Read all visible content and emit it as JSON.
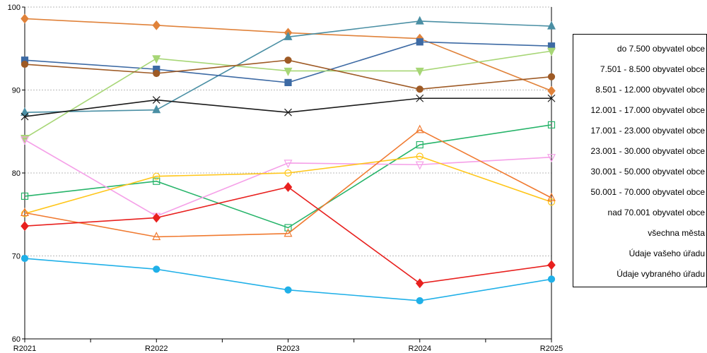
{
  "chart_data": {
    "type": "line",
    "title": "",
    "xlabel": "",
    "ylabel": "",
    "ylim": [
      60,
      100
    ],
    "yticks": [
      60,
      70,
      80,
      90,
      100
    ],
    "grid": "horizontal dotted",
    "legend_position": "right",
    "categories": [
      "R2021",
      "R2022",
      "R2023",
      "R2024",
      "R2025"
    ],
    "series": [
      {
        "name": "do 7.500 obyvatel obce",
        "color": "#e0823a",
        "marker": "diamond-filled",
        "values": [
          98.6,
          97.8,
          96.9,
          96.2,
          89.9
        ]
      },
      {
        "name": "7.501 - 8.500 obyvatel obce",
        "color": "#4a8fa4",
        "marker": "triangle-up-filled",
        "values": [
          87.3,
          87.6,
          96.4,
          98.3,
          97.7
        ]
      },
      {
        "name": "8.501 - 12.000 obyvatel obce",
        "color": "#3d6aa4",
        "marker": "square-filled",
        "values": [
          93.6,
          92.5,
          90.9,
          95.8,
          95.3
        ]
      },
      {
        "name": "12.001 - 17.000 obyvatel obce",
        "color": "#a7d676",
        "marker": "triangle-down-filled",
        "values": [
          84.2,
          93.8,
          92.3,
          92.3,
          94.7
        ]
      },
      {
        "name": "17.001 - 23.000 obyvatel obce",
        "color": "#9e5a25",
        "marker": "circle-filled",
        "values": [
          93.1,
          92.0,
          93.6,
          90.1,
          91.6
        ]
      },
      {
        "name": "23.001 - 30.000 obyvatel obce",
        "color": "#1a1a1a",
        "marker": "x",
        "values": [
          86.8,
          88.8,
          87.3,
          89.0,
          89.0
        ]
      },
      {
        "name": "30.001 - 50.000 obyvatel obce",
        "color": "#27b46a",
        "marker": "square-open",
        "values": [
          77.2,
          79.0,
          73.4,
          83.4,
          85.8
        ]
      },
      {
        "name": "50.001 - 70.000 obyvatel obce",
        "color": "#f5a0e8",
        "marker": "triangle-down-open",
        "values": [
          84.0,
          74.8,
          81.2,
          81.0,
          81.9
        ]
      },
      {
        "name": "nad 70.001 obyvatel obce",
        "color": "#ffc61a",
        "marker": "circle-open",
        "values": [
          75.1,
          79.6,
          80.0,
          82.0,
          76.5
        ]
      },
      {
        "name": "všechna města",
        "color": "#f07a30",
        "marker": "triangle-up-open",
        "values": [
          75.2,
          72.3,
          72.7,
          85.2,
          77.0
        ]
      },
      {
        "name": "Údaje vašeho úřadu",
        "color": "#e8201e",
        "marker": "diamond-filled",
        "values": [
          73.6,
          74.6,
          78.3,
          66.7,
          68.9
        ]
      },
      {
        "name": "Údaje vybraného úřadu",
        "color": "#20b0e8",
        "marker": "circle-filled",
        "values": [
          69.7,
          68.4,
          65.9,
          64.6,
          67.2
        ]
      }
    ]
  }
}
